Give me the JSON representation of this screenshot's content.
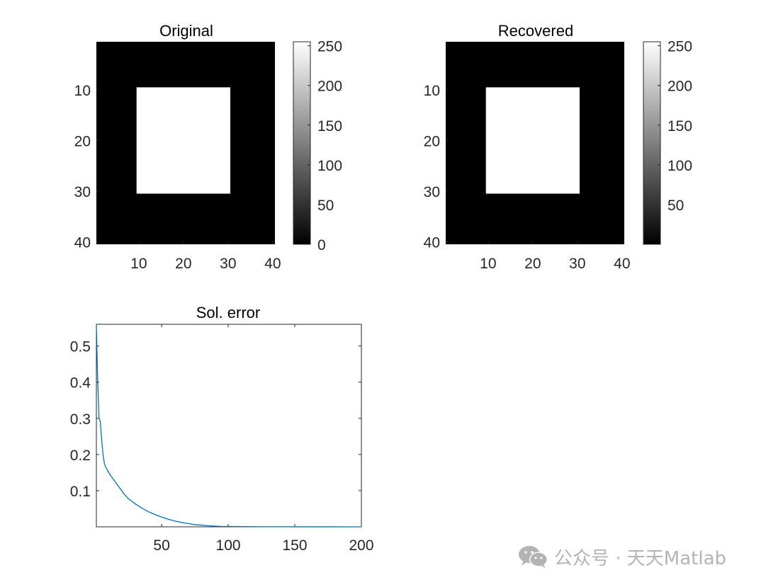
{
  "chart_data": [
    {
      "type": "heatmap",
      "title": "Original",
      "x_ticks": [
        10,
        20,
        30,
        40
      ],
      "y_ticks": [
        10,
        20,
        30,
        40
      ],
      "xlim": [
        0.5,
        40.5
      ],
      "ylim": [
        0.5,
        40.5
      ],
      "grid": false,
      "colormap": "gray",
      "image_size": [
        40,
        40
      ],
      "background_value": 0,
      "square": {
        "rows": [
          10,
          30
        ],
        "cols": [
          10,
          30
        ],
        "value": 255
      },
      "colorbar": {
        "range": [
          0,
          255
        ],
        "ticks": [
          0,
          50,
          100,
          150,
          200,
          250
        ]
      }
    },
    {
      "type": "heatmap",
      "title": "Recovered",
      "x_ticks": [
        10,
        20,
        30,
        40
      ],
      "y_ticks": [
        10,
        20,
        30,
        40
      ],
      "xlim": [
        0.5,
        40.5
      ],
      "ylim": [
        0.5,
        40.5
      ],
      "grid": false,
      "colormap": "gray",
      "image_size": [
        40,
        40
      ],
      "background_value": 0,
      "square": {
        "rows": [
          10,
          30
        ],
        "cols": [
          10,
          30
        ],
        "value": 255
      },
      "colorbar": {
        "range": [
          0,
          255
        ],
        "ticks": [
          50,
          100,
          150,
          200,
          250
        ]
      }
    },
    {
      "type": "line",
      "title": "Sol. error",
      "xlim": [
        1,
        200
      ],
      "ylim": [
        0,
        0.56
      ],
      "x_ticks": [
        50,
        100,
        150,
        200
      ],
      "y_ticks": [
        0.1,
        0.2,
        0.3,
        0.4,
        0.5
      ],
      "grid": false,
      "series": [
        {
          "color": "#0072BD",
          "x": [
            1,
            2,
            3,
            4,
            5,
            6,
            7,
            8,
            10,
            12,
            15,
            18,
            20,
            22,
            25,
            30,
            35,
            40,
            45,
            50,
            55,
            60,
            65,
            70,
            75,
            80,
            85,
            90,
            95,
            100,
            110,
            120,
            130,
            140,
            150,
            160,
            170,
            180,
            190,
            200
          ],
          "y": [
            0.56,
            0.4,
            0.3,
            0.29,
            0.24,
            0.2,
            0.175,
            0.165,
            0.152,
            0.14,
            0.125,
            0.11,
            0.1,
            0.09,
            0.078,
            0.064,
            0.052,
            0.042,
            0.034,
            0.027,
            0.021,
            0.016,
            0.012,
            0.009,
            0.006,
            0.0045,
            0.003,
            0.002,
            0.0013,
            0.001,
            0.0006,
            0.0004,
            0.0003,
            0.0002,
            0.00015,
            0.0001,
            0.0001,
            8e-05,
            5e-05,
            3e-05
          ]
        }
      ]
    }
  ],
  "watermark": {
    "icon": "wechat-icon",
    "text": "公众号 · 天天Matlab",
    "color": "#b4b4b4"
  }
}
